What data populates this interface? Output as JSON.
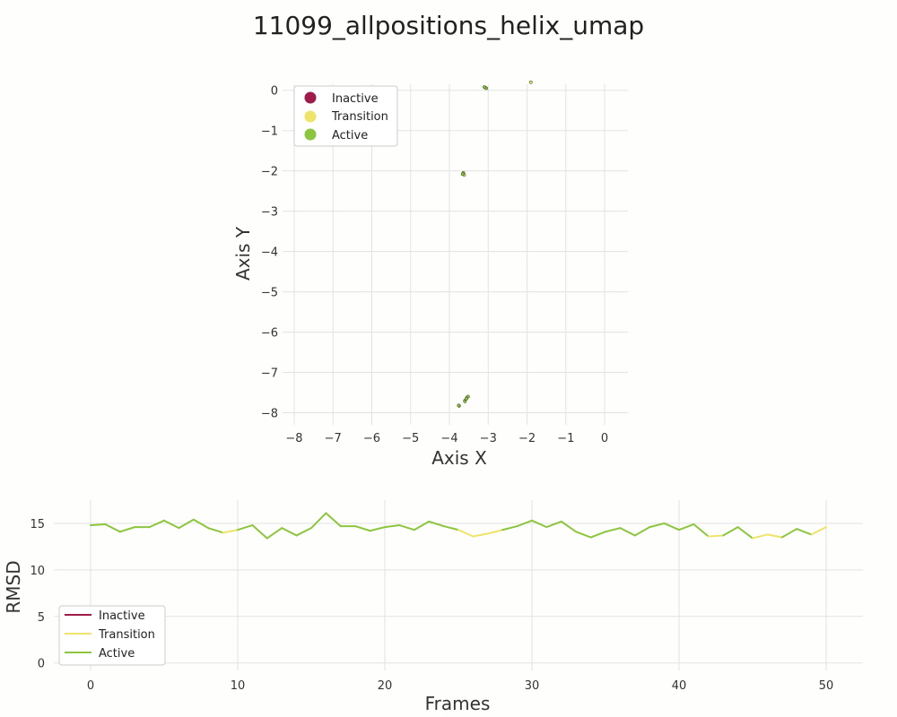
{
  "figure": {
    "title": "11099_allpositions_helix_umap"
  },
  "colors": {
    "inactive": "#9e1b4b",
    "transition": "#efe36a",
    "active": "#8cc63f",
    "grid": "#e3e3e3",
    "axis_text": "#333333"
  },
  "chart_data": [
    {
      "type": "scatter",
      "title": "",
      "xlabel": "Axis X",
      "ylabel": "Axis Y",
      "xlim": [
        -8.3,
        0.6
      ],
      "ylim": [
        -8.3,
        0.15
      ],
      "xticks": [
        -8,
        -7,
        -6,
        -5,
        -4,
        -3,
        -2,
        -1,
        0
      ],
      "xtick_labels": [
        "−8",
        "−7",
        "−6",
        "−5",
        "−4",
        "−3",
        "−2",
        "−1",
        "0"
      ],
      "yticks": [
        0,
        -1,
        -2,
        -3,
        -4,
        -5,
        -6,
        -7,
        -8
      ],
      "ytick_labels": [
        "0",
        "−1",
        "−2",
        "−3",
        "−4",
        "−5",
        "−6",
        "−7",
        "−8"
      ],
      "grid": true,
      "legend_position": "top-left",
      "series": [
        {
          "name": "Inactive",
          "color_key": "inactive",
          "x": [],
          "y": []
        },
        {
          "name": "Transition",
          "color_key": "transition",
          "x": [
            -1.9,
            -3.08,
            -3.65,
            -3.55,
            -3.6,
            -3.75,
            -3.62
          ],
          "y": [
            0.2,
            0.07,
            -2.07,
            -7.63,
            -7.7,
            -7.83,
            -2.1
          ]
        },
        {
          "name": "Active",
          "color_key": "active",
          "x": [
            -3.05,
            -3.64,
            -3.66,
            -3.52,
            -3.56,
            -3.6,
            -3.76,
            -3.1
          ],
          "y": [
            0.05,
            -2.05,
            -2.08,
            -7.6,
            -7.65,
            -7.72,
            -7.82,
            0.08
          ]
        }
      ]
    },
    {
      "type": "line",
      "title": "",
      "xlabel": "Frames",
      "ylabel": "RMSD",
      "xlim": [
        -2.5,
        52.5
      ],
      "ylim": [
        -0.8,
        17.5
      ],
      "xticks": [
        0,
        10,
        20,
        30,
        40,
        50
      ],
      "xtick_labels": [
        "0",
        "10",
        "20",
        "30",
        "40",
        "50"
      ],
      "yticks": [
        0,
        5,
        10,
        15
      ],
      "ytick_labels": [
        "0",
        "5",
        "10",
        "15"
      ],
      "grid": true,
      "legend_position": "bottom-left",
      "x": [
        0,
        1,
        2,
        3,
        4,
        5,
        6,
        7,
        8,
        9,
        10,
        11,
        12,
        13,
        14,
        15,
        16,
        17,
        18,
        19,
        20,
        21,
        22,
        23,
        24,
        25,
        26,
        27,
        28,
        29,
        30,
        31,
        32,
        33,
        34,
        35,
        36,
        37,
        38,
        39,
        40,
        41,
        42,
        43,
        44,
        45,
        46,
        47,
        48,
        49,
        50
      ],
      "values": [
        14.8,
        14.9,
        14.1,
        14.6,
        14.6,
        15.3,
        14.5,
        15.4,
        14.5,
        14.0,
        14.3,
        14.8,
        13.4,
        14.5,
        13.7,
        14.5,
        16.1,
        14.7,
        14.7,
        14.2,
        14.6,
        14.8,
        14.3,
        15.2,
        14.7,
        14.3,
        13.6,
        13.9,
        14.3,
        14.7,
        15.3,
        14.6,
        15.2,
        14.1,
        13.5,
        14.1,
        14.5,
        13.7,
        14.6,
        15.0,
        14.3,
        14.9,
        13.6,
        13.7,
        14.6,
        13.4,
        13.8,
        13.5,
        14.4,
        13.8,
        14.6
      ],
      "states": [
        "active",
        "active",
        "active",
        "active",
        "active",
        "active",
        "active",
        "active",
        "active",
        "active",
        "transition",
        "active",
        "active",
        "active",
        "active",
        "active",
        "active",
        "active",
        "active",
        "active",
        "active",
        "active",
        "active",
        "active",
        "active",
        "active",
        "transition",
        "transition",
        "transition",
        "active",
        "active",
        "active",
        "active",
        "active",
        "active",
        "active",
        "active",
        "active",
        "active",
        "active",
        "active",
        "active",
        "active",
        "transition",
        "active",
        "active",
        "transition",
        "transition",
        "active",
        "active",
        "transition"
      ],
      "series": [
        {
          "name": "Inactive",
          "color_key": "inactive"
        },
        {
          "name": "Transition",
          "color_key": "transition"
        },
        {
          "name": "Active",
          "color_key": "active"
        }
      ]
    }
  ]
}
